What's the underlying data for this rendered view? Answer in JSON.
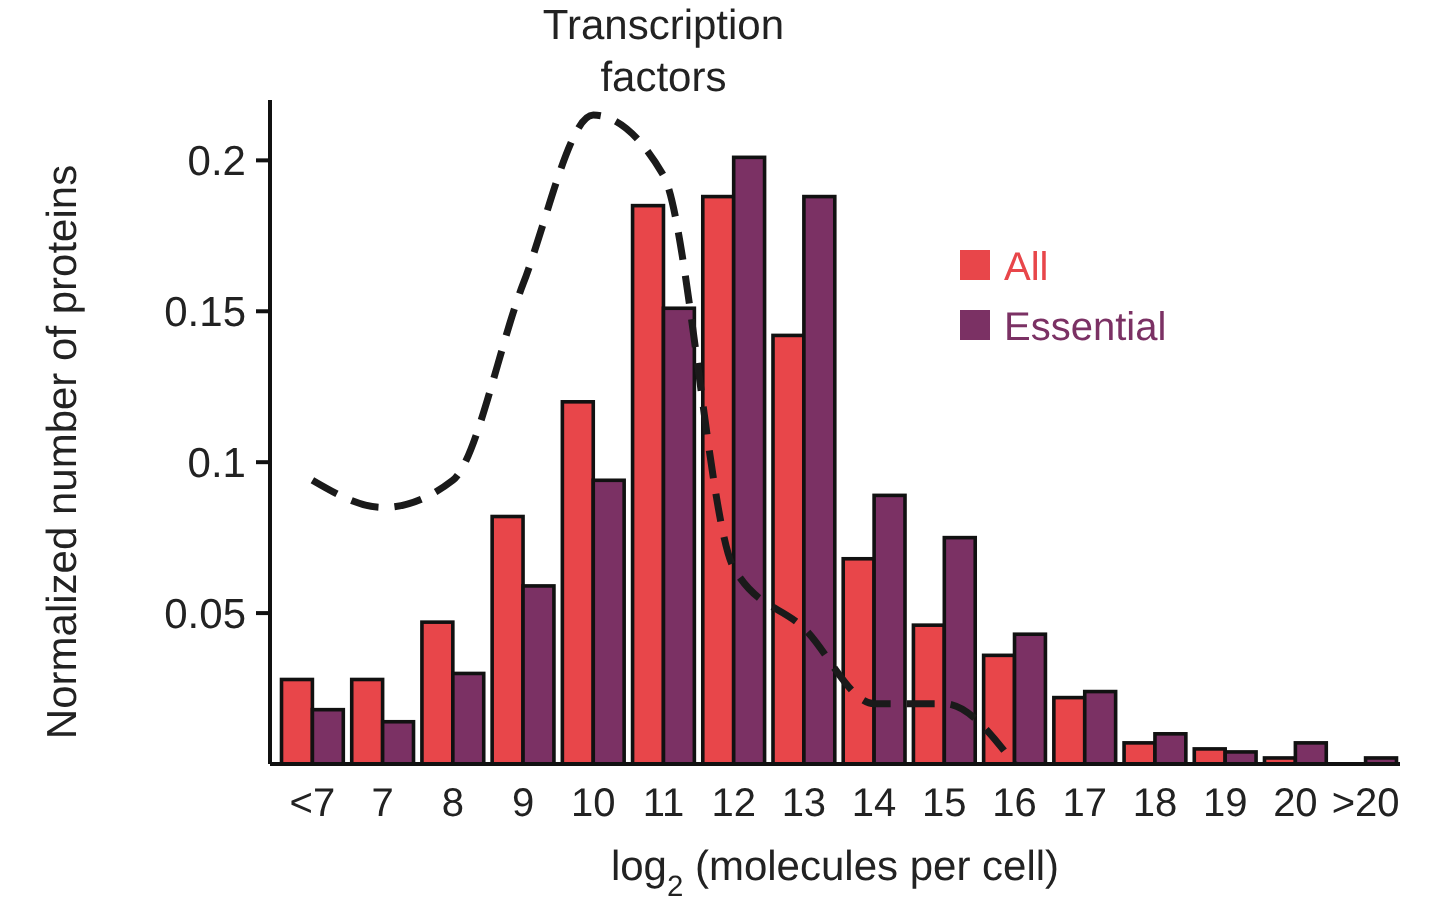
{
  "chart_data": {
    "type": "bar",
    "xlabel": "log$_{2}$ (molecules per cell)",
    "ylabel": "Normalized number of proteins",
    "categories": [
      "<7",
      "7",
      "8",
      "9",
      "10",
      "11",
      "12",
      "13",
      "14",
      "15",
      "16",
      "17",
      "18",
      "19",
      "20",
      ">20"
    ],
    "series": [
      {
        "name": "All",
        "color": "#e8464a",
        "values": [
          0.028,
          0.028,
          0.047,
          0.082,
          0.12,
          0.185,
          0.188,
          0.142,
          0.068,
          0.046,
          0.036,
          0.022,
          0.007,
          0.005,
          0.002,
          null
        ]
      },
      {
        "name": "Essential",
        "color": "#7b3164",
        "values": [
          0.018,
          0.014,
          0.03,
          0.059,
          0.094,
          0.151,
          0.201,
          0.188,
          0.089,
          0.075,
          0.043,
          0.024,
          0.01,
          0.004,
          0.007,
          0.002
        ]
      },
      {
        "type": "line",
        "color": "#1a1a1a",
        "line_style": "dashed",
        "marker": "none",
        "values": [
          0.094,
          0.085,
          0.094,
          0.159,
          0.215,
          0.195,
          0.065,
          0.045,
          0.02,
          0.02,
          0,
          null,
          null,
          null,
          null,
          null
        ]
      }
    ],
    "annotations": [
      {
        "text": "Transcription\nfactors",
        "x": "11",
        "y": 0.195
      }
    ],
    "ylim": [
      0,
      0.22
    ],
    "yticks": [
      0.05,
      0.1,
      0.15,
      0.2
    ],
    "grid": false,
    "legend": "top right"
  }
}
